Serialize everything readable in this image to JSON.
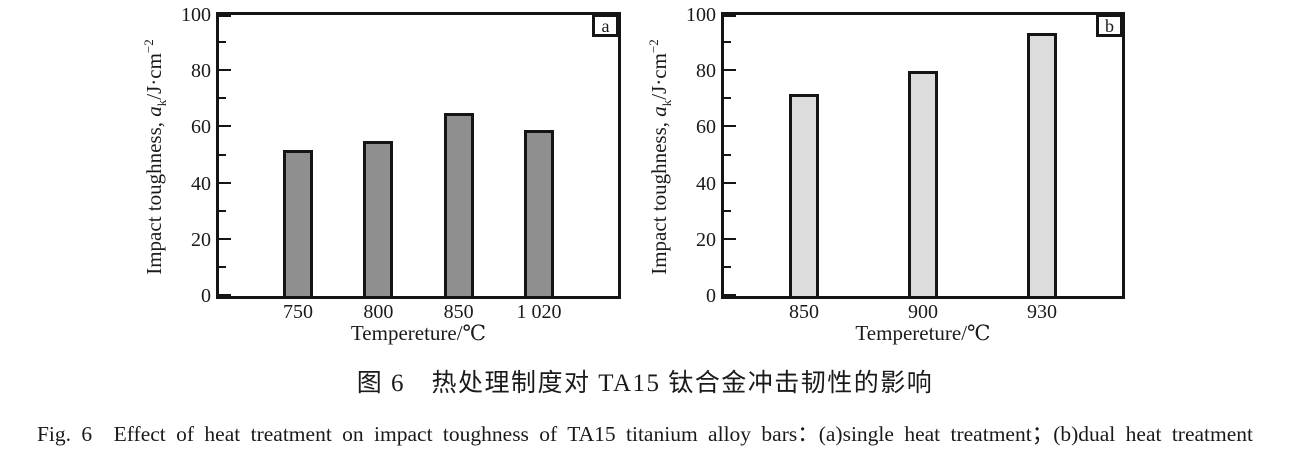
{
  "figure": {
    "caption_zh": "图 6　热处理制度对 TA15 钛合金冲击韧性的影响",
    "caption_en": "Fig. 6　Effect of heat treatment on impact toughness of TA15 titanium alloy bars：(a)single heat treatment；(b)dual heat treatment"
  },
  "chart_data": [
    {
      "type": "bar",
      "panel_label": "a",
      "title": "",
      "categories": [
        "750",
        "800",
        "850",
        "1 020"
      ],
      "values": [
        52,
        55,
        65,
        59
      ],
      "xlabel": "Tempereture/℃",
      "ylabel": "Impact toughness, aₖ/J·cm⁻²",
      "ylabel_parts": {
        "prefix": "Impact toughness, ",
        "var": "a",
        "sub": "k",
        "mid": "/J·cm",
        "sup": "−2"
      },
      "ylim": [
        0,
        100
      ],
      "ytick_step": 20,
      "yminor_step": 10,
      "grid": false,
      "legend": null,
      "bar_color": "#8f8f8f",
      "bar_border": "#151515",
      "bar_area_margin": 79
    },
    {
      "type": "bar",
      "panel_label": "b",
      "title": "",
      "categories": [
        "850",
        "900",
        "930"
      ],
      "values": [
        72,
        80,
        93.5
      ],
      "xlabel": "Tempereture/℃",
      "ylabel": "Impact toughness, aₖ/J·cm⁻²",
      "ylabel_parts": {
        "prefix": "Impact toughness, ",
        "var": "a",
        "sub": "k",
        "mid": "/J·cm",
        "sup": "−2"
      },
      "ylim": [
        0,
        100
      ],
      "ytick_step": 20,
      "yminor_step": 10,
      "grid": false,
      "legend": null,
      "bar_color": "#dcdcdc",
      "bar_border": "#151515",
      "bar_area_margin": 80
    }
  ]
}
